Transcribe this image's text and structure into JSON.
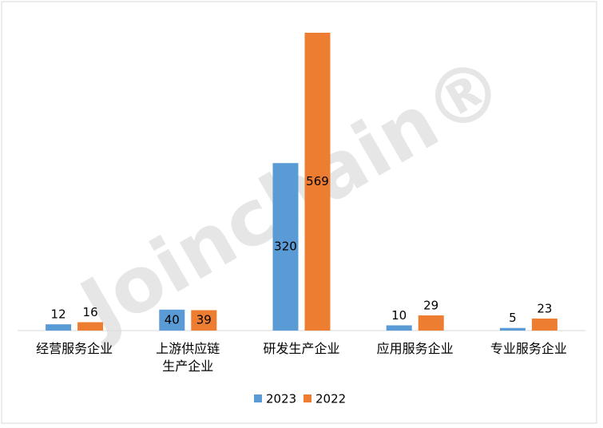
{
  "chart_data": {
    "type": "bar",
    "watermark": "Joinchain®",
    "categories": [
      "经营服务企业",
      "上游供应链\n生产企业",
      "研发生产企业",
      "应用服务企业",
      "专业服务企业"
    ],
    "series": [
      {
        "name": "2023",
        "color": "#5b9bd5",
        "values": [
          12,
          40,
          320,
          10,
          5
        ]
      },
      {
        "name": "2022",
        "color": "#ed7d31",
        "values": [
          16,
          39,
          569,
          29,
          23
        ]
      }
    ],
    "legend": "bottom"
  }
}
